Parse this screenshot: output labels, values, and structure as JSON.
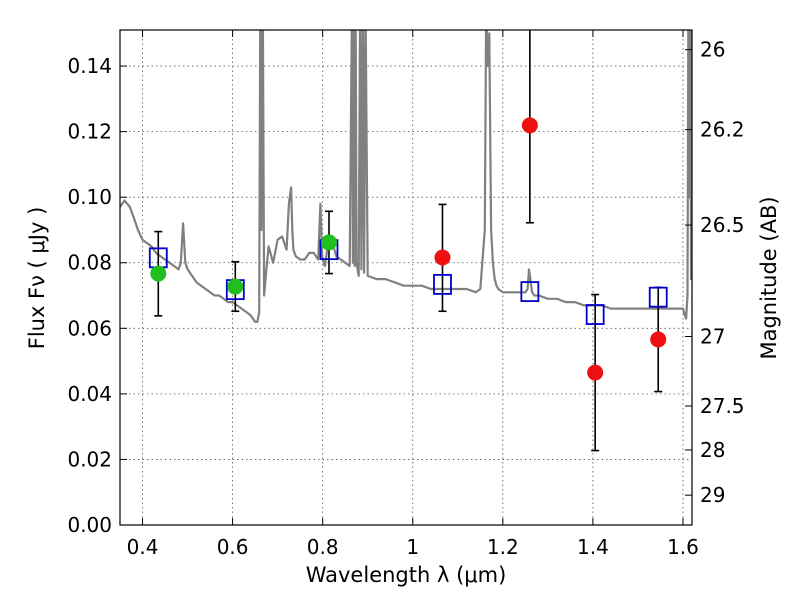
{
  "chart_data": {
    "type": "scatter",
    "xlabel": "Wavelength  λ (μm)",
    "ylabel": "Flux  Fν  ( μJy )",
    "y2label": "Magnitude (AB)",
    "xlim": [
      0.35,
      1.62
    ],
    "ylim": [
      0.0,
      0.151
    ],
    "grid": true,
    "x_ticks": [
      0.4,
      0.6,
      0.8,
      1.0,
      1.2,
      1.4,
      1.6
    ],
    "x_tick_labels": [
      "0.4",
      "0.6",
      "0.8",
      "1",
      "1.2",
      "1.4",
      "1.6"
    ],
    "y_ticks": [
      0.0,
      0.02,
      0.04,
      0.06,
      0.08,
      0.1,
      0.12,
      0.14
    ],
    "y_tick_labels": [
      "0.00",
      "0.02",
      "0.04",
      "0.06",
      "0.08",
      "0.10",
      "0.12",
      "0.14"
    ],
    "y2_ticks": [
      {
        "label": "26",
        "flux": 0.145
      },
      {
        "label": "26.2",
        "flux": 0.1206
      },
      {
        "label": "26.5",
        "flux": 0.0915
      },
      {
        "label": "27",
        "flux": 0.0575
      },
      {
        "label": "27.5",
        "flux": 0.0363
      },
      {
        "label": "28",
        "flux": 0.0229
      },
      {
        "label": "29",
        "flux": 0.0091
      }
    ],
    "colors": {
      "model": "#808080",
      "green": "#1fbf1f",
      "red": "#ee1111",
      "square": "#0000cc",
      "errorbar": "#000000",
      "grid": "#555555"
    },
    "series": [
      {
        "type": "points",
        "color": "green",
        "points": [
          {
            "x": 0.435,
            "y": 0.0767,
            "ylow": 0.0638,
            "yhigh": 0.0895
          },
          {
            "x": 0.606,
            "y": 0.0727,
            "ylow": 0.0652,
            "yhigh": 0.0803
          },
          {
            "x": 0.814,
            "y": 0.0862,
            "ylow": 0.0767,
            "yhigh": 0.0957
          }
        ]
      },
      {
        "type": "points",
        "color": "red",
        "points": [
          {
            "x": 1.066,
            "y": 0.0816,
            "ylow": 0.0652,
            "yhigh": 0.0978
          },
          {
            "x": 1.26,
            "y": 0.1219,
            "ylow": 0.0922,
            "yhigh": 0.158
          },
          {
            "x": 1.405,
            "y": 0.0465,
            "ylow": 0.0227,
            "yhigh": 0.0703
          },
          {
            "x": 1.545,
            "y": 0.0566,
            "ylow": 0.0407,
            "yhigh": 0.0725
          }
        ]
      },
      {
        "type": "model_photometry",
        "color": "square",
        "points": [
          {
            "x": 0.435,
            "y": 0.0815
          },
          {
            "x": 0.606,
            "y": 0.0718
          },
          {
            "x": 0.814,
            "y": 0.084
          },
          {
            "x": 1.066,
            "y": 0.0734
          },
          {
            "x": 1.26,
            "y": 0.0712
          },
          {
            "x": 1.405,
            "y": 0.0642
          },
          {
            "x": 1.545,
            "y": 0.0695
          }
        ]
      }
    ],
    "model_spectrum": {
      "color": "model",
      "x": [
        0.35,
        0.36,
        0.372,
        0.38,
        0.39,
        0.4,
        0.41,
        0.42,
        0.43,
        0.44,
        0.45,
        0.46,
        0.47,
        0.48,
        0.485,
        0.49,
        0.495,
        0.5,
        0.51,
        0.52,
        0.53,
        0.54,
        0.55,
        0.56,
        0.57,
        0.58,
        0.59,
        0.6,
        0.61,
        0.62,
        0.63,
        0.64,
        0.65,
        0.655,
        0.659,
        0.6615,
        0.664,
        0.667,
        0.67,
        0.675,
        0.68,
        0.69,
        0.7,
        0.71,
        0.72,
        0.725,
        0.73,
        0.7325,
        0.735,
        0.74,
        0.75,
        0.76,
        0.77,
        0.78,
        0.79,
        0.795,
        0.799,
        0.802,
        0.805,
        0.81,
        0.82,
        0.83,
        0.84,
        0.85,
        0.86,
        0.865,
        0.867,
        0.869,
        0.871,
        0.873,
        0.875,
        0.88,
        0.883,
        0.886,
        0.889,
        0.892,
        0.895,
        0.9,
        0.92,
        0.94,
        0.96,
        0.98,
        1.0,
        1.02,
        1.04,
        1.06,
        1.08,
        1.1,
        1.12,
        1.14,
        1.15,
        1.16,
        1.163,
        1.166,
        1.17,
        1.174,
        1.178,
        1.182,
        1.186,
        1.19,
        1.2,
        1.22,
        1.24,
        1.25,
        1.255,
        1.258,
        1.262,
        1.265,
        1.27,
        1.28,
        1.3,
        1.32,
        1.34,
        1.36,
        1.38,
        1.4,
        1.42,
        1.44,
        1.46,
        1.48,
        1.5,
        1.52,
        1.54,
        1.56,
        1.58,
        1.59,
        1.6,
        1.604,
        1.607,
        1.61,
        1.612,
        1.614,
        1.616,
        1.618,
        1.62
      ],
      "y": [
        0.097,
        0.099,
        0.097,
        0.094,
        0.09,
        0.087,
        0.086,
        0.085,
        0.083,
        0.082,
        0.081,
        0.08,
        0.079,
        0.078,
        0.08,
        0.092,
        0.08,
        0.078,
        0.076,
        0.074,
        0.073,
        0.072,
        0.071,
        0.07,
        0.07,
        0.069,
        0.068,
        0.068,
        0.067,
        0.066,
        0.065,
        0.064,
        0.062,
        0.062,
        0.065,
        0.16,
        0.09,
        0.16,
        0.07,
        0.078,
        0.085,
        0.08,
        0.087,
        0.088,
        0.084,
        0.098,
        0.103,
        0.09,
        0.084,
        0.082,
        0.081,
        0.081,
        0.083,
        0.083,
        0.081,
        0.098,
        0.082,
        0.08,
        0.079,
        0.084,
        0.087,
        0.082,
        0.081,
        0.08,
        0.079,
        0.16,
        0.08,
        0.16,
        0.079,
        0.16,
        0.08,
        0.076,
        0.16,
        0.078,
        0.16,
        0.077,
        0.16,
        0.076,
        0.075,
        0.075,
        0.074,
        0.073,
        0.073,
        0.073,
        0.072,
        0.072,
        0.072,
        0.072,
        0.072,
        0.071,
        0.072,
        0.09,
        0.16,
        0.14,
        0.15,
        0.09,
        0.08,
        0.075,
        0.073,
        0.072,
        0.071,
        0.071,
        0.071,
        0.071,
        0.072,
        0.078,
        0.074,
        0.071,
        0.07,
        0.07,
        0.069,
        0.069,
        0.068,
        0.068,
        0.067,
        0.067,
        0.067,
        0.066,
        0.066,
        0.066,
        0.066,
        0.066,
        0.066,
        0.066,
        0.066,
        0.066,
        0.066,
        0.064,
        0.063,
        0.07,
        0.16,
        0.1,
        0.16,
        0.075,
        0.16
      ]
    }
  }
}
